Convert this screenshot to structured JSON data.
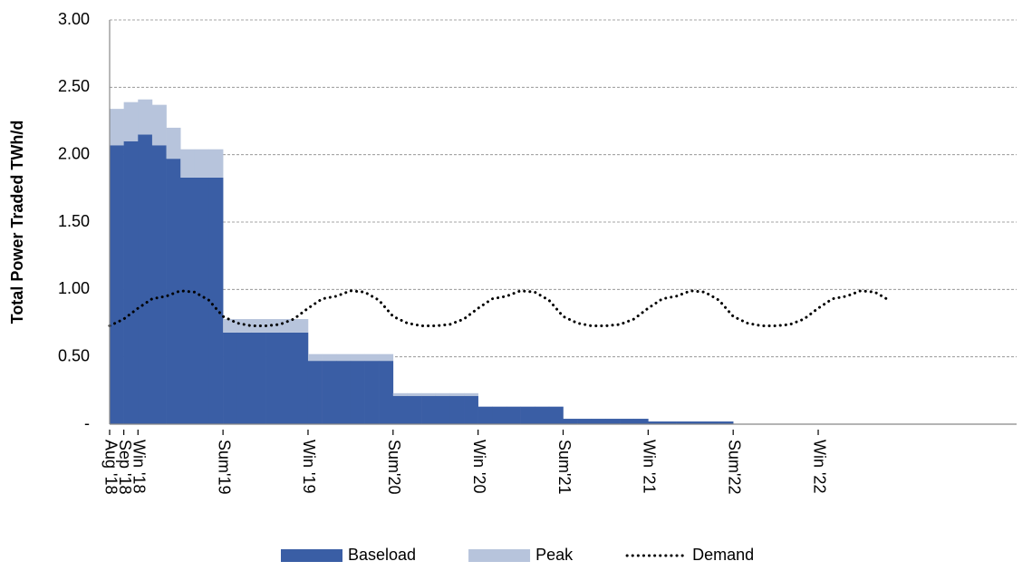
{
  "chart_data": {
    "type": "bar",
    "stacked": true,
    "y_label": "Total Power Traded TWh/d",
    "categories": [
      "Aug '18",
      "Sep '18",
      "Win '18",
      null,
      null,
      null,
      null,
      null,
      "Sum'19",
      null,
      null,
      null,
      null,
      null,
      "Win '19",
      null,
      null,
      null,
      null,
      null,
      "Sum'20",
      null,
      null,
      null,
      null,
      null,
      "Win '20",
      null,
      null,
      null,
      null,
      null,
      "Sum'21",
      null,
      null,
      null,
      null,
      null,
      "Win '21",
      null,
      null,
      null,
      null,
      null,
      "Sum'22",
      null,
      null,
      null,
      null,
      null,
      "Win '22",
      null,
      null,
      null,
      null,
      null,
      null,
      null,
      null,
      null,
      null,
      null,
      null,
      null
    ],
    "series": [
      {
        "name": "Baseload",
        "type": "bar",
        "color": "#3a5ea5",
        "values": [
          2.07,
          2.1,
          2.15,
          2.07,
          1.97,
          1.83,
          1.83,
          1.83,
          0.68,
          0.68,
          0.68,
          0.68,
          0.68,
          0.68,
          0.47,
          0.47,
          0.47,
          0.47,
          0.47,
          0.47,
          0.21,
          0.21,
          0.21,
          0.21,
          0.21,
          0.21,
          0.13,
          0.13,
          0.13,
          0.13,
          0.13,
          0.13,
          0.04,
          0.04,
          0.04,
          0.04,
          0.04,
          0.04,
          0.02,
          0.02,
          0.02,
          0.02,
          0.02,
          0.02,
          0,
          0,
          0,
          0,
          0,
          0,
          0,
          0,
          0,
          0,
          0,
          0,
          0,
          0,
          0,
          0,
          0,
          0,
          0,
          0
        ]
      },
      {
        "name": "Peak",
        "type": "bar",
        "color": "#b7c4dc",
        "values": [
          0.27,
          0.29,
          0.26,
          0.3,
          0.23,
          0.21,
          0.21,
          0.21,
          0.1,
          0.1,
          0.1,
          0.1,
          0.1,
          0.1,
          0.05,
          0.05,
          0.05,
          0.05,
          0.05,
          0.05,
          0.02,
          0.02,
          0.02,
          0.02,
          0.02,
          0.02,
          0,
          0,
          0,
          0,
          0,
          0,
          0,
          0,
          0,
          0,
          0,
          0,
          0,
          0,
          0,
          0,
          0,
          0,
          0,
          0,
          0,
          0,
          0,
          0,
          0,
          0,
          0,
          0,
          0,
          0,
          0,
          0,
          0,
          0,
          0,
          0,
          0,
          0
        ]
      },
      {
        "name": "Demand",
        "type": "line",
        "color": "#000000",
        "values": [
          0.73,
          0.78,
          0.86,
          0.93,
          0.95,
          0.99,
          0.98,
          0.92,
          0.8,
          0.75,
          0.73,
          0.73,
          0.74,
          0.78,
          0.86,
          0.93,
          0.95,
          0.99,
          0.98,
          0.92,
          0.8,
          0.75,
          0.73,
          0.73,
          0.74,
          0.78,
          0.86,
          0.93,
          0.95,
          0.99,
          0.98,
          0.92,
          0.8,
          0.75,
          0.73,
          0.73,
          0.74,
          0.78,
          0.86,
          0.93,
          0.95,
          0.99,
          0.98,
          0.92,
          0.8,
          0.75,
          0.73,
          0.73,
          0.74,
          0.78,
          0.86,
          0.93,
          0.95,
          0.99,
          0.98,
          0.92,
          null,
          null,
          null,
          null,
          null,
          null,
          null,
          null
        ]
      }
    ],
    "ylim": [
      0,
      3
    ],
    "yticks": [
      {
        "value": 0,
        "label": "-"
      },
      {
        "value": 0.5,
        "label": "0.50"
      },
      {
        "value": 1,
        "label": "1.00"
      },
      {
        "value": 1.5,
        "label": "1.50"
      },
      {
        "value": 2,
        "label": "2.00"
      },
      {
        "value": 2.5,
        "label": "2.50"
      },
      {
        "value": 3,
        "label": "3.00"
      }
    ],
    "grid": true,
    "legend": "bottom"
  }
}
